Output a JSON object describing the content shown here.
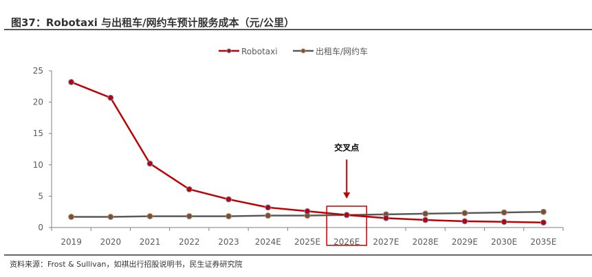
{
  "title": "图37：Robotaxi 与出租车/网约车预计服务成本（元/公里）",
  "source": "资料来源：Frost & Sullivan，如祺出行招股说明书，民生证券研究院",
  "chart_data": {
    "type": "line",
    "title": "图37：Robotaxi 与出租车/网约车预计服务成本（元/公里）",
    "categories": [
      "2019",
      "2020",
      "2021",
      "2022",
      "2023",
      "2024E",
      "2025E",
      "2026E",
      "2027E",
      "2028E",
      "2029E",
      "2030E",
      "2035E"
    ],
    "yticks": [
      "0",
      "5",
      "10",
      "15",
      "20",
      "25"
    ],
    "ylim": [
      0,
      25
    ],
    "grid": false,
    "legend_position": "top-right",
    "series": [
      {
        "name": "Robotaxi",
        "color": "#C00000",
        "marker_edge": "#5B9BD5",
        "values": [
          23.2,
          20.7,
          10.2,
          6.1,
          4.5,
          3.2,
          2.6,
          2.0,
          1.5,
          1.2,
          1.0,
          0.9,
          0.8
        ]
      },
      {
        "name": "出租车/网约车",
        "color": "#595959",
        "marker_edge": "#ED7D31",
        "values": [
          1.7,
          1.7,
          1.8,
          1.8,
          1.8,
          1.9,
          1.9,
          2.0,
          2.1,
          2.2,
          2.3,
          2.4,
          2.5
        ]
      }
    ],
    "annotation": {
      "text": "交叉点",
      "category": "2026E",
      "color": "#C00000"
    }
  }
}
